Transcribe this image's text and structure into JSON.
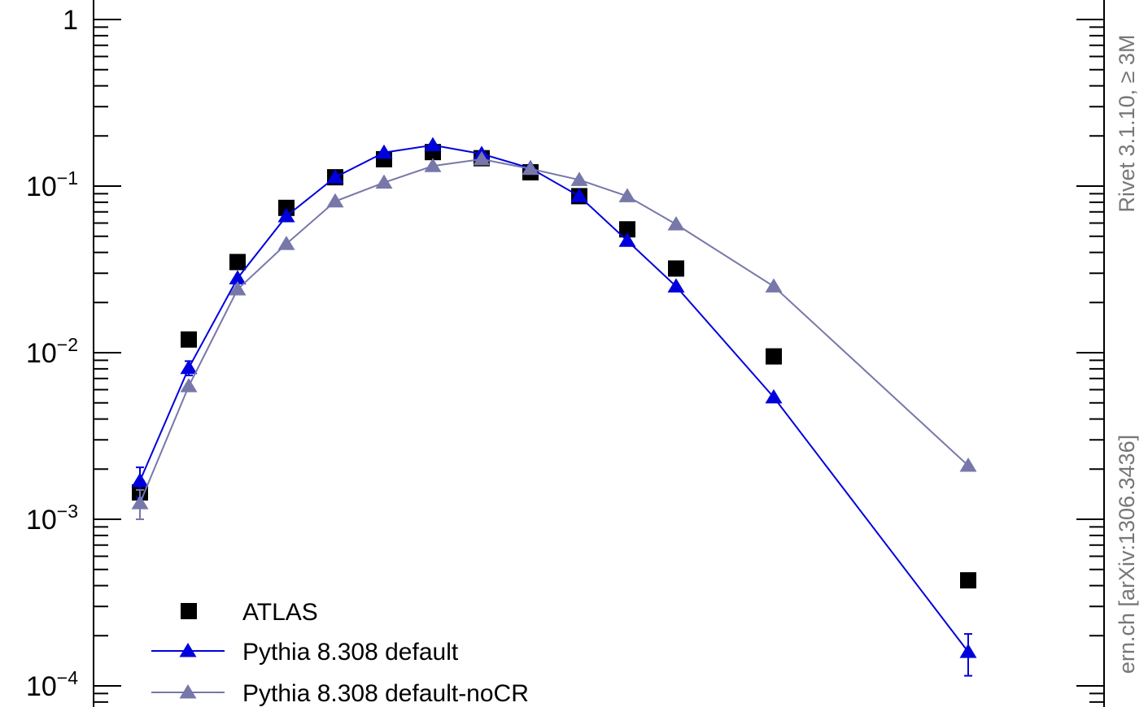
{
  "chart_data": {
    "type": "line",
    "yscale": "log",
    "ylim": [
      0.0001,
      1
    ],
    "y_ticks": [
      {
        "value": 1,
        "base": "1",
        "exp": ""
      },
      {
        "value": 0.1,
        "base": "10",
        "exp": "−1"
      },
      {
        "value": 0.01,
        "base": "10",
        "exp": "−2"
      },
      {
        "value": 0.001,
        "base": "10",
        "exp": "−3"
      },
      {
        "value": 0.0001,
        "base": "10",
        "exp": "−4"
      }
    ],
    "legend": {
      "placement": "bottom-left",
      "entries": [
        {
          "label": "ATLAS",
          "marker": "square",
          "color": "#000000"
        },
        {
          "label": "Pythia 8.308 default",
          "marker": "triangle",
          "color": "#0000dd"
        },
        {
          "label": "Pythia 8.308 default-noCR",
          "marker": "triangle",
          "color": "#7777aa"
        }
      ]
    },
    "side_labels": [
      {
        "text": "Rivet 3.1.10, ≥ 3M"
      },
      {
        "text": "ern.ch [arXiv:1306.3436]"
      }
    ],
    "series": [
      {
        "name": "ATLAS",
        "marker": "square",
        "color": "#000000",
        "x": [
          1,
          2,
          3,
          4,
          5,
          6,
          7,
          8,
          9,
          10,
          11,
          12,
          13,
          14,
          16,
          20
        ],
        "y": [
          0.00145,
          0.012,
          0.035,
          0.074,
          0.113,
          0.145,
          0.16,
          0.147,
          0.121,
          0.087,
          0.055,
          0.032,
          0.0095,
          0.00043,
          null,
          null
        ],
        "yerr": [
          0,
          0,
          0,
          0,
          0,
          0,
          0,
          0,
          0,
          0,
          0,
          0,
          0,
          0,
          0,
          0
        ]
      },
      {
        "name": "Pythia 8.308 default",
        "marker": "triangle",
        "color": "#0000dd",
        "x": [
          1,
          2,
          3,
          4,
          5,
          6,
          7,
          8,
          9,
          10,
          11,
          12,
          13,
          14,
          16,
          20
        ],
        "y": [
          0.0017,
          0.0081,
          0.028,
          0.066,
          0.113,
          0.159,
          0.176,
          0.156,
          0.128,
          0.087,
          0.047,
          0.025,
          0.0054,
          0.00016,
          null,
          null
        ],
        "yerr": [
          0.00035,
          0.0008,
          0,
          0,
          0,
          0,
          0,
          0,
          0,
          0,
          0,
          0,
          0,
          4.5e-05,
          0,
          0
        ]
      },
      {
        "name": "Pythia 8.308 default-noCR",
        "marker": "triangle",
        "color": "#7777aa",
        "x": [
          1,
          2,
          3,
          4,
          5,
          6,
          7,
          8,
          9,
          10,
          11,
          12,
          13,
          14,
          16,
          20
        ],
        "y": [
          0.00125,
          0.0063,
          0.024,
          0.045,
          0.081,
          0.105,
          0.132,
          0.145,
          0.127,
          0.109,
          0.087,
          0.059,
          0.025,
          0.0021,
          null,
          null
        ],
        "yerr": [
          0.00025,
          0,
          0,
          0,
          0,
          0,
          0,
          0,
          0,
          0,
          0,
          0,
          0,
          0,
          0,
          0
        ]
      }
    ]
  }
}
